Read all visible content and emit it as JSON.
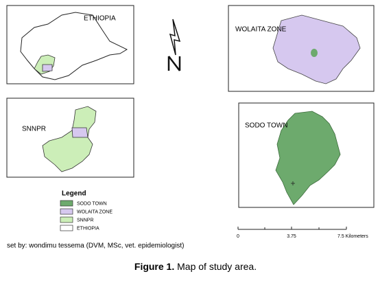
{
  "panels": {
    "ethiopia": "ETHIOPIA",
    "snnpr": "SNNPR",
    "wolaita": "WOLAITA ZONE",
    "sodo": "SODO TOWN"
  },
  "legend": {
    "title": "Legend",
    "items": [
      "SODO TOWN",
      "WOLAITA ZONE",
      "SNNPR",
      "ETHIOPIA"
    ]
  },
  "scale_bar": {
    "labels": [
      "0",
      "3.75",
      "7.5 Kilometers"
    ]
  },
  "credit": "set by: wondimu tessema (DVM, MSc, vet. epidemiologist)",
  "caption": {
    "label": "Figure 1.",
    "text": "Map of study area."
  }
}
